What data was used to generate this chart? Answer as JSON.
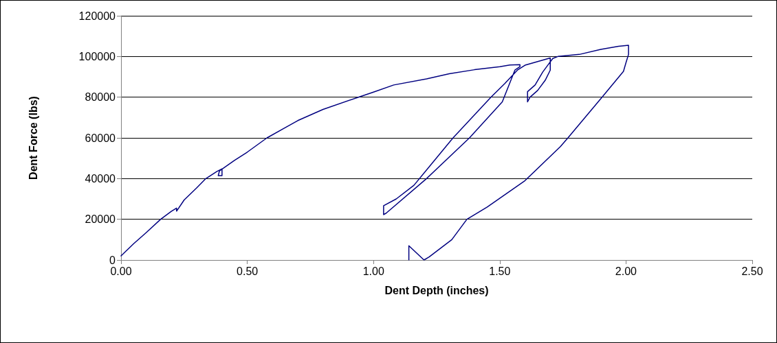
{
  "chart_data": {
    "type": "line",
    "xlabel": "Dent Depth (inches)",
    "ylabel": "Dent Force (lbs)",
    "xlim": [
      0,
      2.5
    ],
    "xticks": [
      {
        "value": 0,
        "label": "0.00"
      },
      {
        "value": 0.5,
        "label": "0.50"
      },
      {
        "value": 1,
        "label": "1.00"
      },
      {
        "value": 1.5,
        "label": "1.50"
      },
      {
        "value": 2,
        "label": "2.00"
      },
      {
        "value": 2.5,
        "label": "2.50"
      }
    ],
    "ylim": [
      0,
      120000
    ],
    "yticks": [
      0,
      20000,
      40000,
      60000,
      80000,
      100000,
      120000
    ],
    "grid": "y",
    "marker": "none",
    "line_style": "solid",
    "series": [
      {
        "color": "#000080",
        "x": [
          0,
          0.05,
          0.1,
          0.157,
          0.2,
          0.22,
          0.22,
          0.25,
          0.3,
          0.336,
          0.38,
          0.4,
          0.4,
          0.385,
          0.39,
          0.45,
          0.5,
          0.578,
          0.65,
          0.7,
          0.8,
          0.94,
          1.0,
          1.08,
          1.21,
          1.3,
          1.4,
          1.5,
          1.54,
          1.58,
          1.58,
          1.56,
          1.51,
          1.38,
          1.21,
          1.05,
          1.04,
          1.04,
          1.09,
          1.16,
          1.315,
          1.465,
          1.52,
          1.57,
          1.6,
          1.65,
          1.7,
          1.7,
          1.68,
          1.65,
          1.62,
          1.61,
          1.61,
          1.64,
          1.67,
          1.69,
          1.71,
          1.73,
          1.815,
          1.9,
          1.97,
          2.01,
          2.01,
          2.0,
          1.99,
          1.905,
          1.77,
          1.74,
          1.6,
          1.45,
          1.37,
          1.31,
          1.22,
          1.2,
          1.14,
          1.14
        ],
        "values": [
          2000,
          8000,
          13500,
          20000,
          24000,
          25500,
          24000,
          29500,
          35500,
          40000,
          43500,
          44800,
          41500,
          41500,
          43800,
          49000,
          53000,
          60000,
          65000,
          68500,
          74000,
          80000,
          82500,
          86000,
          89000,
          91500,
          93500,
          95000,
          95800,
          96000,
          95000,
          93300,
          77700,
          60000,
          40000,
          23000,
          22300,
          26700,
          30000,
          36700,
          60000,
          80000,
          86700,
          93300,
          95700,
          97500,
          99300,
          93300,
          88300,
          83300,
          80000,
          77700,
          82700,
          86000,
          92300,
          95700,
          99000,
          100000,
          101000,
          103500,
          105000,
          105500,
          101000,
          97000,
          92700,
          80000,
          60000,
          55700,
          39000,
          26000,
          20000,
          10000,
          1500,
          0,
          7000,
          0
        ]
      }
    ]
  }
}
